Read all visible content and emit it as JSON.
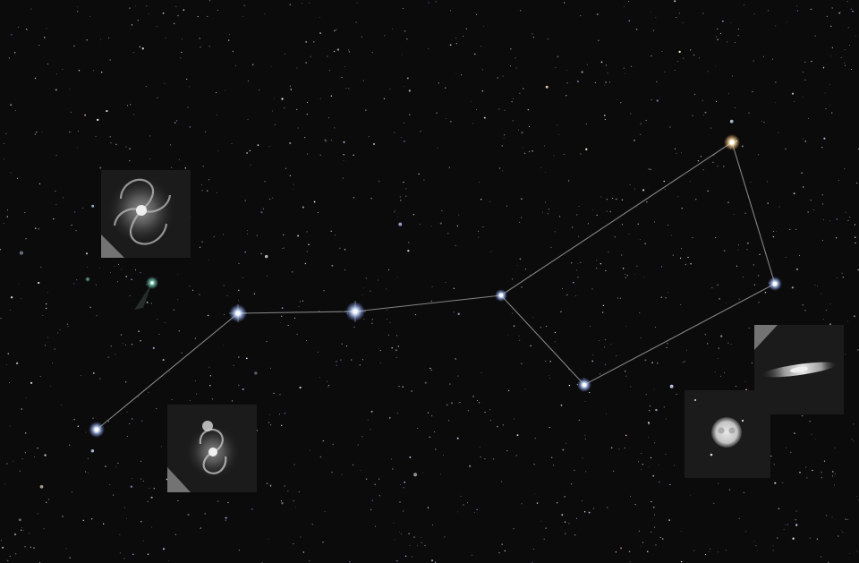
{
  "scene": {
    "subject": "big-dipper-asterism",
    "sky_color": "#0b0b0c",
    "line_color": "#9a9a9a",
    "star_color": "#bcd0ff",
    "warm_star_color": "#ffe6b8",
    "inset_background": "#1b1b1b"
  },
  "asterism": {
    "stars": [
      {
        "name": "alkaid",
        "tint": "cool"
      },
      {
        "name": "mizar",
        "tint": "cool"
      },
      {
        "name": "alioth",
        "tint": "cool"
      },
      {
        "name": "megrez",
        "tint": "cool"
      },
      {
        "name": "phecda",
        "tint": "cool"
      },
      {
        "name": "merak",
        "tint": "cool"
      },
      {
        "name": "dubhe",
        "tint": "warm"
      }
    ]
  },
  "insets": [
    {
      "name": "pinwheel-galaxy-inset",
      "object": "spiral-galaxy-face-on"
    },
    {
      "name": "whirlpool-galaxy-inset",
      "object": "interacting-spiral-galaxy"
    },
    {
      "name": "owl-nebula-inset",
      "object": "planetary-nebula"
    },
    {
      "name": "edge-on-galaxy-inset",
      "object": "edge-on-galaxy"
    }
  ]
}
